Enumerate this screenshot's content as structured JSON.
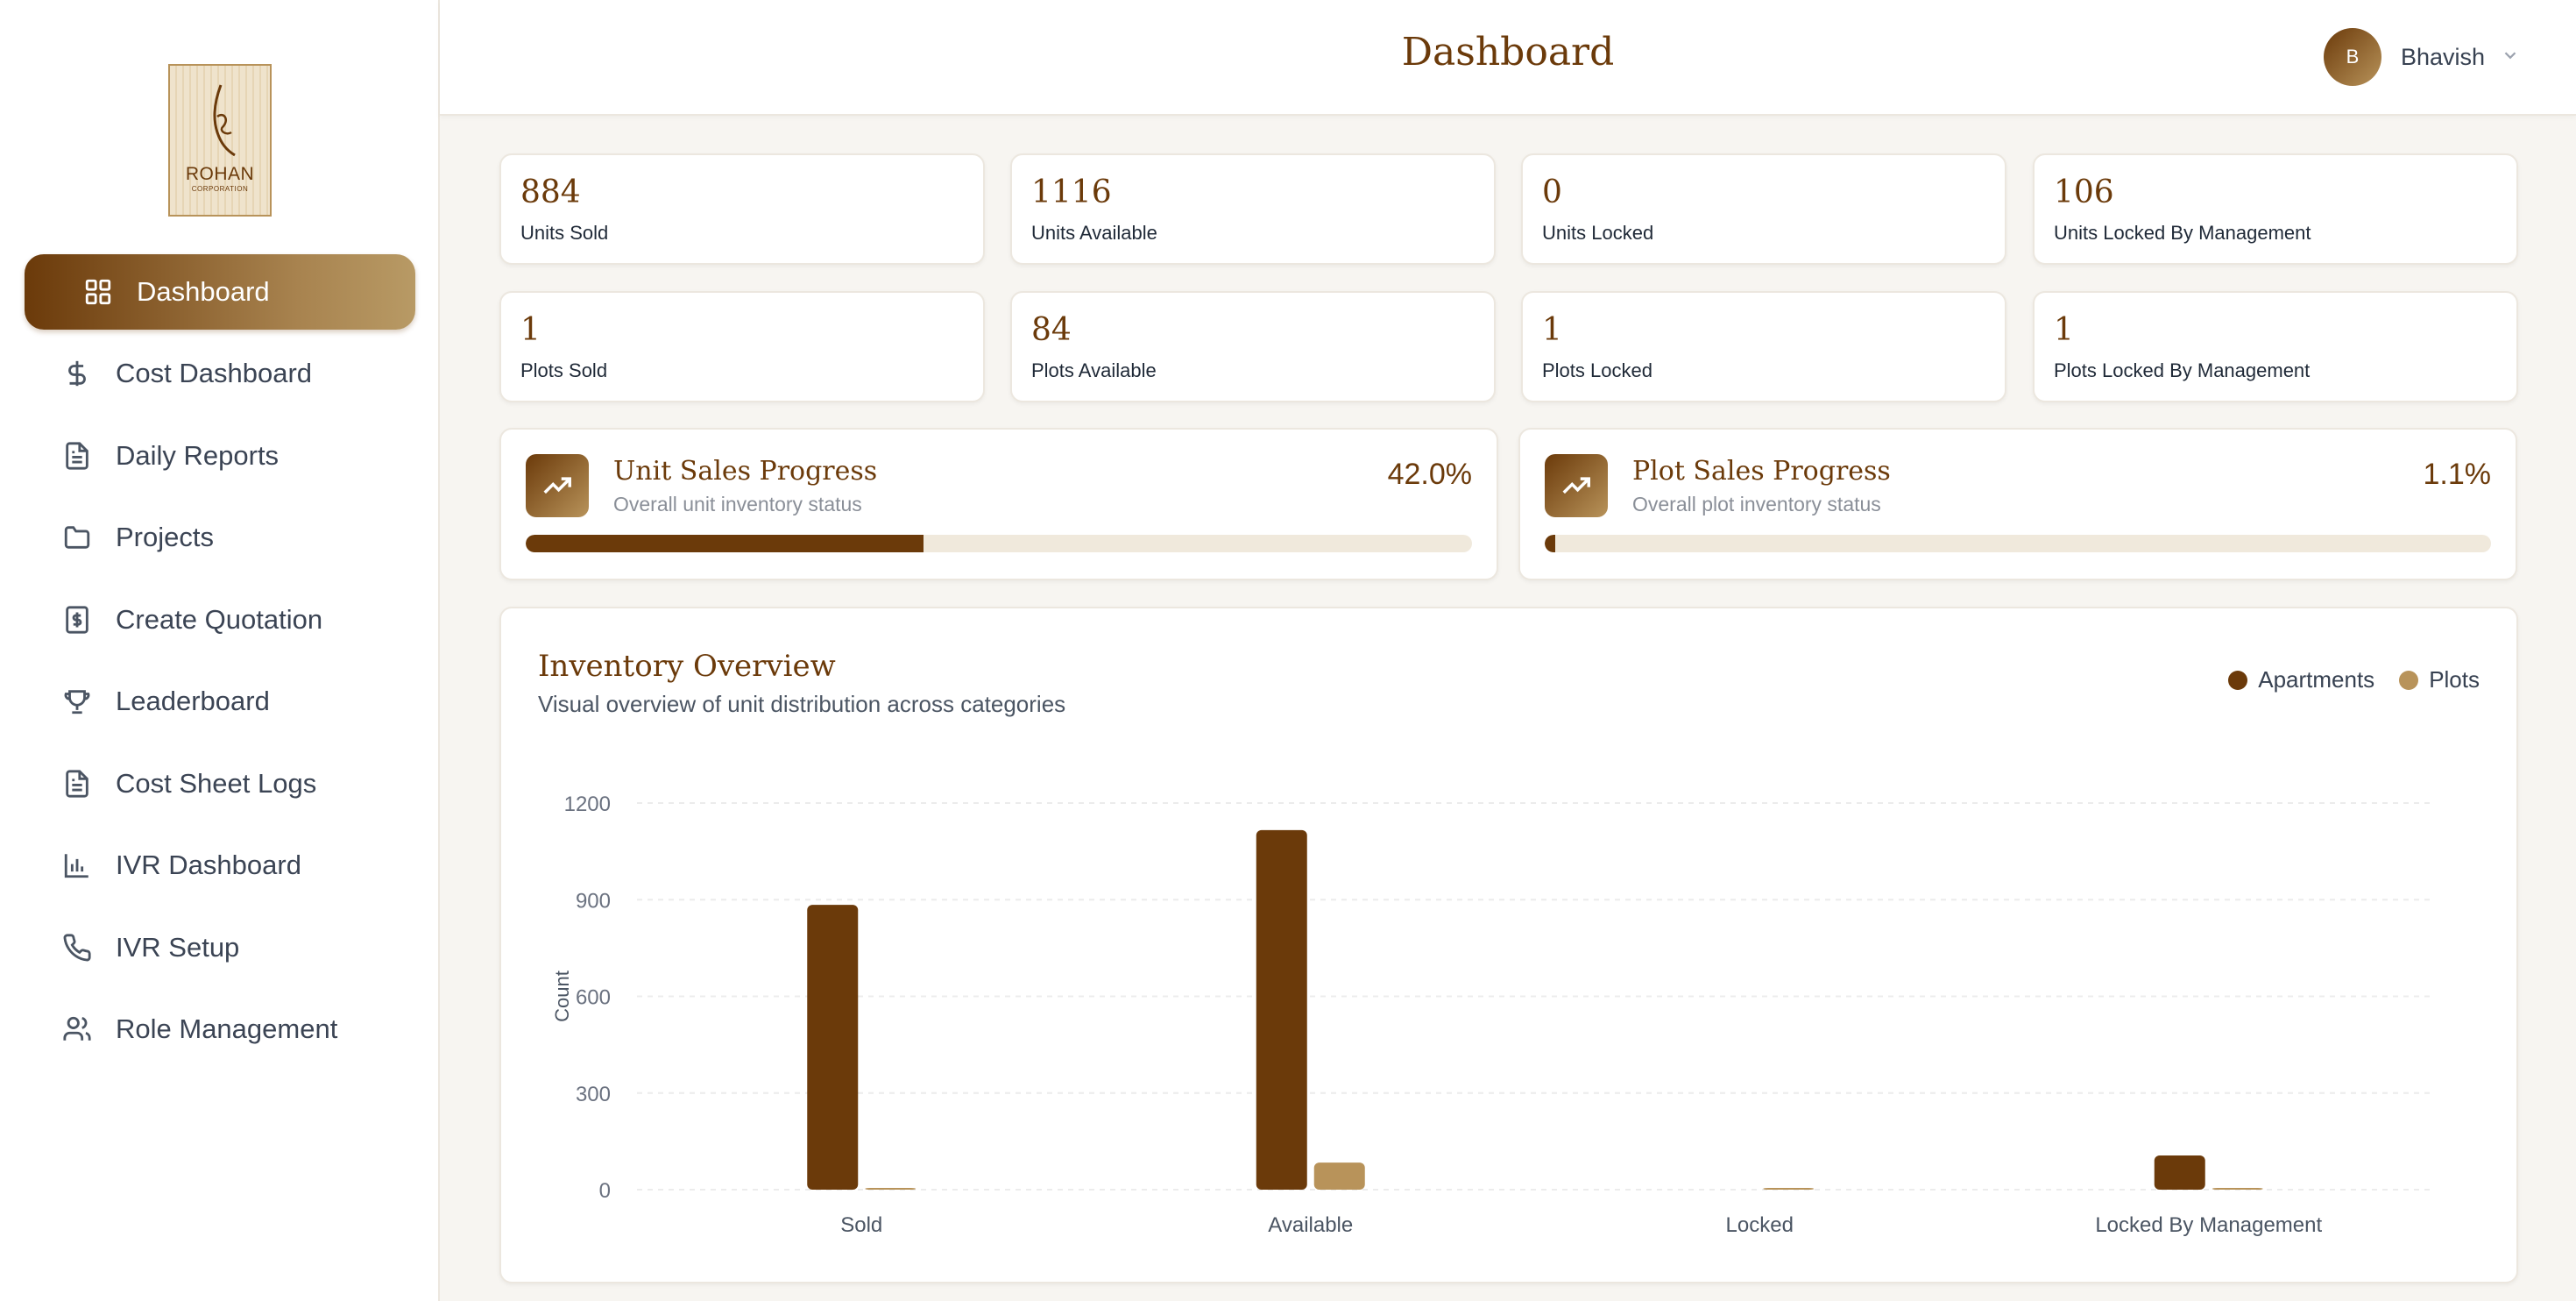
{
  "app": {
    "brand": "ROHAN",
    "brand_sub": "CORPORATION",
    "accent": "#6b3a0a",
    "accent_light": "#b8935a"
  },
  "sidebar": {
    "items": [
      {
        "label": "Dashboard",
        "icon": "grid-icon",
        "active": true
      },
      {
        "label": "Cost Dashboard",
        "icon": "dollar-icon",
        "active": false
      },
      {
        "label": "Daily Reports",
        "icon": "document-icon",
        "active": false
      },
      {
        "label": "Projects",
        "icon": "folder-icon",
        "active": false
      },
      {
        "label": "Create Quotation",
        "icon": "receipt-dollar-icon",
        "active": false
      },
      {
        "label": "Leaderboard",
        "icon": "trophy-icon",
        "active": false
      },
      {
        "label": "Cost Sheet Logs",
        "icon": "document-icon",
        "active": false
      },
      {
        "label": "IVR Dashboard",
        "icon": "bar-chart-icon",
        "active": false
      },
      {
        "label": "IVR Setup",
        "icon": "phone-icon",
        "active": false
      },
      {
        "label": "Role Management",
        "icon": "users-icon",
        "active": false
      }
    ]
  },
  "header": {
    "title": "Dashboard",
    "user": {
      "initial": "B",
      "name": "Bhavish"
    }
  },
  "stats": [
    {
      "value": "884",
      "label": "Units Sold"
    },
    {
      "value": "1116",
      "label": "Units Available"
    },
    {
      "value": "0",
      "label": "Units Locked"
    },
    {
      "value": "106",
      "label": "Units Locked By Management"
    },
    {
      "value": "1",
      "label": "Plots Sold"
    },
    {
      "value": "84",
      "label": "Plots Available"
    },
    {
      "value": "1",
      "label": "Plots Locked"
    },
    {
      "value": "1",
      "label": "Plots Locked By Management"
    }
  ],
  "progress": [
    {
      "title": "Unit Sales Progress",
      "subtitle": "Overall unit inventory status",
      "percent_text": "42.0%",
      "fraction": 0.42
    },
    {
      "title": "Plot Sales Progress",
      "subtitle": "Overall plot inventory status",
      "percent_text": "1.1%",
      "fraction": 0.011
    }
  ],
  "chart": {
    "title": "Inventory Overview",
    "subtitle": "Visual overview of unit distribution across categories"
  },
  "chart_data": {
    "type": "bar",
    "categories": [
      "Sold",
      "Available",
      "Locked",
      "Locked By Management"
    ],
    "series": [
      {
        "name": "Apartments",
        "values": [
          884,
          1116,
          0,
          106
        ],
        "color": "#6b3a0a"
      },
      {
        "name": "Plots",
        "values": [
          1,
          84,
          1,
          1
        ],
        "color": "#b8935a"
      }
    ],
    "xlabel": "",
    "ylabel": "Count",
    "ylim": [
      0,
      1200
    ],
    "yticks": [
      0,
      300,
      600,
      900,
      1200
    ],
    "grid": true,
    "legend": "top-right"
  }
}
